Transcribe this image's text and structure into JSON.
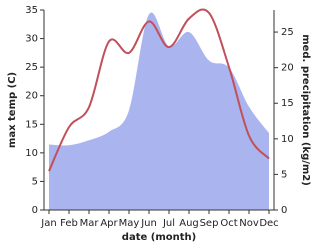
{
  "chart_data": {
    "type": "line",
    "categories": [
      "Jan",
      "Feb",
      "Mar",
      "Apr",
      "May",
      "Jun",
      "Jul",
      "Aug",
      "Sep",
      "Oct",
      "Nov",
      "Dec"
    ],
    "xlabel": "date (month)",
    "ylabel": "max temp (C)",
    "y2label": "med. precipitation (kg/m2)",
    "ylim": [
      0,
      35
    ],
    "yticks": [
      0,
      5,
      10,
      15,
      20,
      25,
      30,
      35
    ],
    "y2lim": [
      0,
      28.1
    ],
    "y2ticks": [
      0,
      5,
      10,
      15,
      20,
      25
    ],
    "series": [
      {
        "name": "precipitation",
        "kind": "area",
        "axis": "y2",
        "color": "#aab4ef",
        "values": [
          9.2,
          9.1,
          9.8,
          11,
          14,
          27.5,
          23,
          25,
          21,
          20,
          14.5,
          10.8
        ]
      },
      {
        "name": "temperature",
        "kind": "line",
        "color": "#c0505a",
        "values": [
          6.8,
          14.5,
          18,
          29.5,
          27.5,
          33,
          28.5,
          33.5,
          34.5,
          25,
          13,
          9
        ]
      }
    ]
  }
}
